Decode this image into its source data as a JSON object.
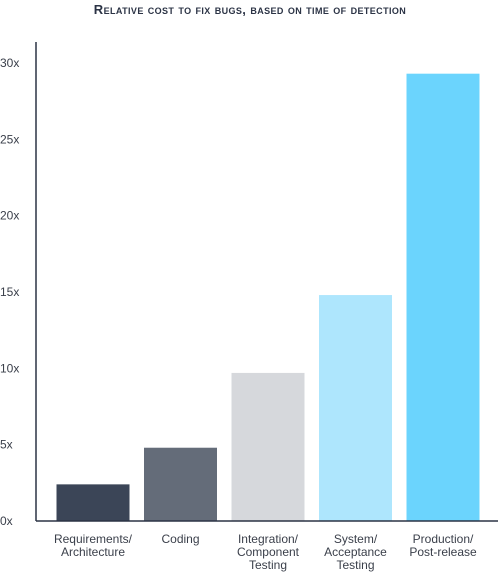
{
  "chart_data": {
    "type": "bar",
    "title": "Relative cost to fix bugs, based on time of detection",
    "xlabel": "",
    "ylabel": "",
    "ylim": [
      0,
      30
    ],
    "yticks": [
      "0x",
      "5x",
      "10x",
      "15x",
      "20x",
      "25x",
      "30x"
    ],
    "grid": false,
    "categories": [
      "Requirements/\nArchitecture",
      "Coding",
      "Integration/\nComponent\nTesting",
      "System/\nAcceptance\nTesting",
      "Production/\nPost-release"
    ],
    "values": [
      2.4,
      4.8,
      9.7,
      14.8,
      29.3
    ],
    "colors": [
      "#3b4557",
      "#646c79",
      "#d6d8dc",
      "#aee6fd",
      "#6bd4fd"
    ]
  }
}
